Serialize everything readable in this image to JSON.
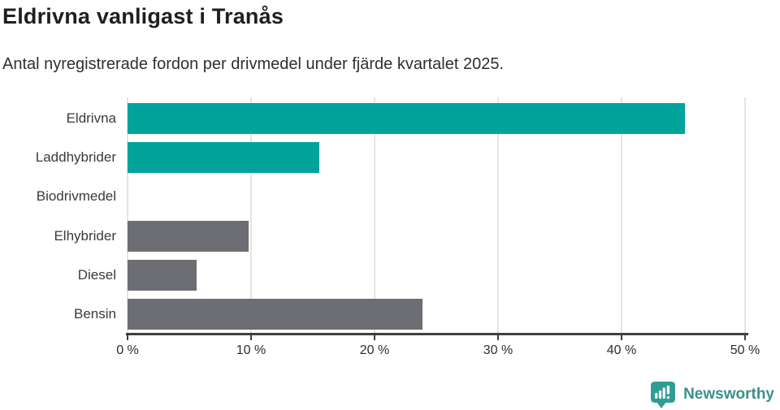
{
  "header": {
    "title": "Eldrivna vanligast i Tranås",
    "subtitle": "Antal nyregistrerade fordon per drivmedel under fjärde kvartalet 2025."
  },
  "chart_data": {
    "type": "bar",
    "orientation": "horizontal",
    "title": "Eldrivna vanligast i Tranås",
    "subtitle": "Antal nyregistrerade fordon per drivmedel under fjärde kvartalet 2025.",
    "categories": [
      "Eldrivna",
      "Laddhybrider",
      "Biodrivmedel",
      "Elhybrider",
      "Diesel",
      "Bensin"
    ],
    "values": [
      45.1,
      15.5,
      0,
      9.8,
      5.6,
      23.9
    ],
    "unit": "%",
    "xlabel": "",
    "ylabel": "",
    "xlim": [
      0,
      50
    ],
    "x_ticks": [
      0,
      10,
      20,
      30,
      40,
      50
    ],
    "x_tick_labels": [
      "0 %",
      "10 %",
      "20 %",
      "30 %",
      "40 %",
      "50 %"
    ],
    "grid": "vertical",
    "legend": "none",
    "bar_colors": [
      "#00a49b",
      "#00a49b",
      "#00a49b",
      "#6d6d74",
      "#6d6d74",
      "#6d6d74"
    ]
  },
  "colors": {
    "highlight": "#00a49b",
    "neutral": "#6d6d74",
    "gridline": "#e4e4e4",
    "axis": "#3f3f3f",
    "title_text": "#1f1f1f",
    "body_text": "#3a3a3a",
    "logo_teal": "#2f9d96",
    "brand_teal": "#3e8f89"
  },
  "footer": {
    "brand": "Newsworthy",
    "logo_icon": "newsworthy-speech-bubble-barchart-icon"
  }
}
